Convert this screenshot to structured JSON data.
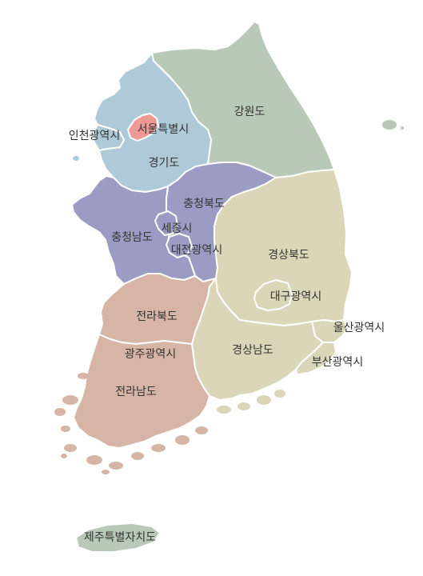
{
  "regions": {
    "gangwon": {
      "label": "강원도",
      "color": "#b9c9b8"
    },
    "gyeonggi": {
      "label": "경기도",
      "color": "#aecad8"
    },
    "seoul": {
      "label": "서울특별시",
      "color": "#ef9994"
    },
    "incheon": {
      "label": "인천광역시",
      "color": "#aecad8"
    },
    "chungbuk": {
      "label": "충청북도",
      "color": "#9b9bc3"
    },
    "chungnam": {
      "label": "충청남도",
      "color": "#9b9bc3"
    },
    "sejong": {
      "label": "세종시",
      "color": "#9b9bc3"
    },
    "daejeon": {
      "label": "대전광역시",
      "color": "#9b9bc3"
    },
    "gyeongbuk": {
      "label": "경상북도",
      "color": "#dcd6b8"
    },
    "daegu": {
      "label": "대구광역시",
      "color": "#dcd6b8"
    },
    "ulsan": {
      "label": "울산광역시",
      "color": "#dcd6b8"
    },
    "gyeongnam": {
      "label": "경상남도",
      "color": "#dcd6b8"
    },
    "busan": {
      "label": "부산광역시",
      "color": "#dcd6b8"
    },
    "jeonbuk": {
      "label": "전라북도",
      "color": "#d6b5a6"
    },
    "gwangju": {
      "label": "광주광역시",
      "color": "#d6b5a6"
    },
    "jeonnam": {
      "label": "전라남도",
      "color": "#d6b5a6"
    },
    "jeju": {
      "label": "제주특별자치도",
      "color": "#b9c9b8"
    }
  }
}
